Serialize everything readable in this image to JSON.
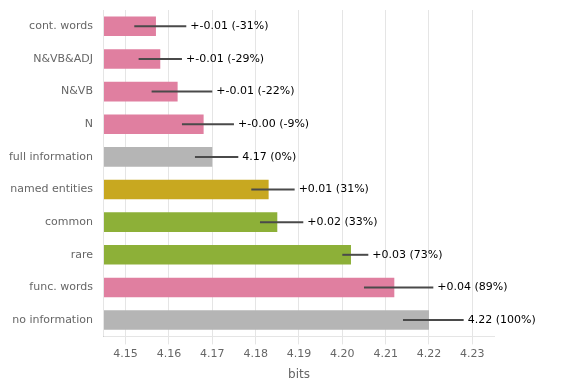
{
  "chart_data": {
    "type": "bar",
    "orientation": "horizontal",
    "categories": [
      "cont. words",
      "N&VB&ADJ",
      "N&VB",
      "N",
      "full information",
      "named entities",
      "common",
      "rare",
      "func. words",
      "no information"
    ],
    "values": [
      4.157,
      4.158,
      4.162,
      4.168,
      4.17,
      4.183,
      4.185,
      4.202,
      4.212,
      4.22
    ],
    "colors": [
      "#e07fa0",
      "#e07fa0",
      "#e07fa0",
      "#e07fa0",
      "#b5b5b5",
      "#c8a820",
      "#8db038",
      "#8db038",
      "#e07fa0",
      "#b5b5b5"
    ],
    "error_centers": [
      4.158,
      4.158,
      4.163,
      4.169,
      4.171,
      4.184,
      4.186,
      4.203,
      4.213,
      4.221
    ],
    "error_sizes": [
      0.006,
      0.005,
      0.007,
      0.006,
      0.005,
      0.005,
      0.005,
      0.003,
      0.008,
      0.007
    ],
    "annotations": [
      "+-0.01 (-31%)",
      "+-0.01 (-29%)",
      "+-0.01 (-22%)",
      "+-0.00 (-9%)",
      "4.17 (0%)",
      "+0.01 (31%)",
      "+0.02 (33%)",
      "+0.03 (73%)",
      "+0.04 (89%)",
      "4.22 (100%)"
    ],
    "xlabel": "bits",
    "xlim": [
      4.145,
      4.235
    ],
    "xticks": [
      4.15,
      4.16,
      4.17,
      4.18,
      4.19,
      {
        "value": 4.2,
        "label": "4.20"
      },
      4.21,
      4.22,
      4.23
    ],
    "grid": true
  }
}
